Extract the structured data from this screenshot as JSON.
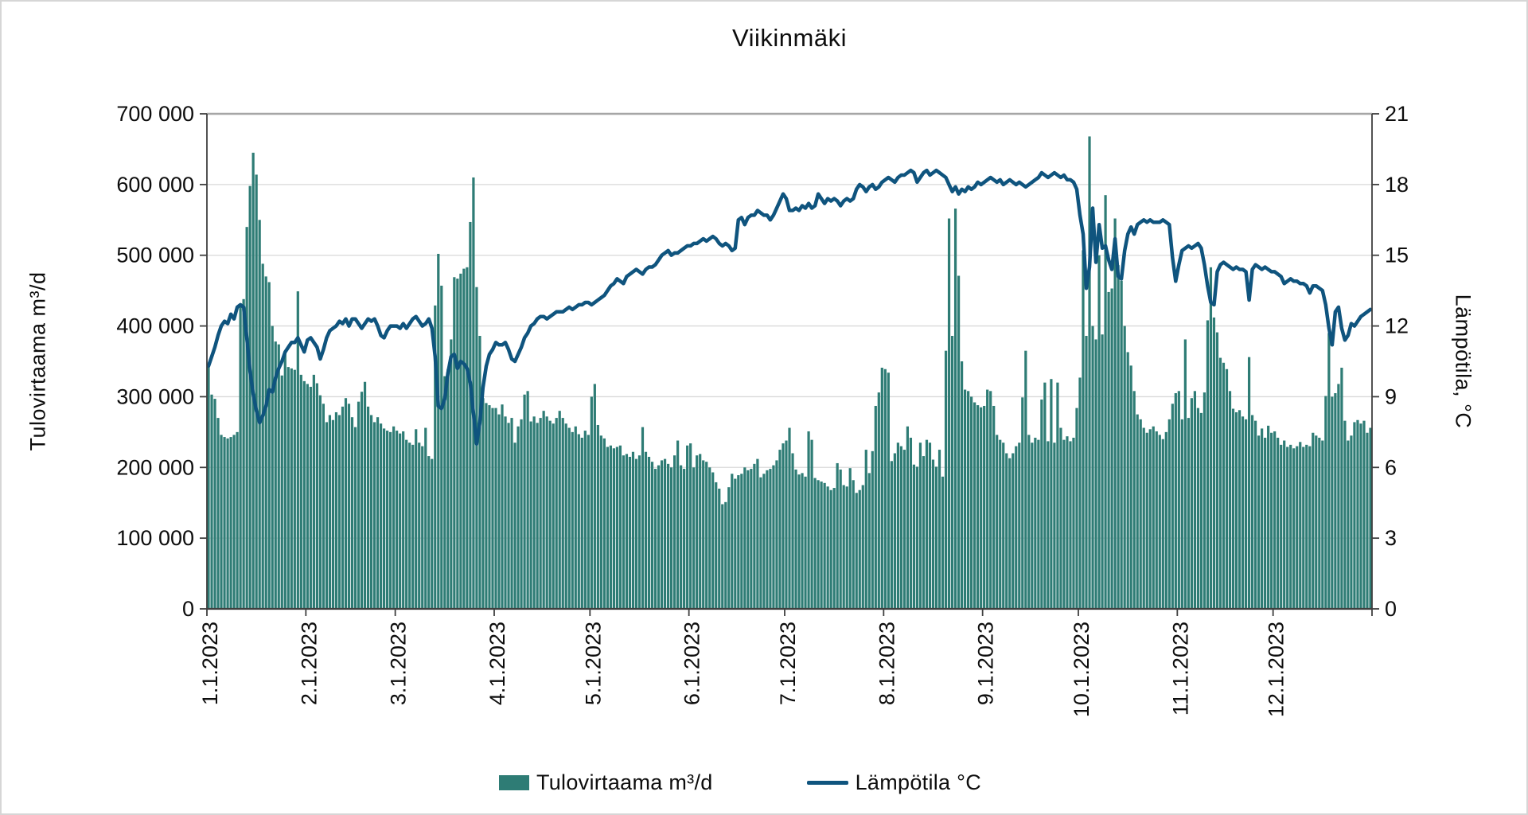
{
  "title": "Viikinmäki",
  "y_axis_left": {
    "title": "Tulovirtaama m³/d",
    "min": 0,
    "max": 700000,
    "step": 100000,
    "tick_labels_top_down": [
      "700 000",
      "600 000",
      "500 000",
      "400 000",
      "300 000",
      "200 000",
      "100 000",
      "0"
    ]
  },
  "y_axis_right": {
    "title": "Lämpötila, °C",
    "min": 0,
    "max": 21,
    "step": 3,
    "tick_labels_top_down": [
      "21",
      "18",
      "15",
      "12",
      "9",
      "6",
      "3",
      "0"
    ]
  },
  "x_axis": {
    "tick_labels": [
      "1.1.2023",
      "2.1.2023",
      "3.1.2023",
      "4.1.2023",
      "5.1.2023",
      "6.1.2023",
      "7.1.2023",
      "8.1.2023",
      "9.1.2023",
      "10.1.2023",
      "11.1.2023",
      "12.1.2023"
    ],
    "month_start_day_offsets": [
      0,
      31,
      59,
      90,
      120,
      151,
      181,
      212,
      243,
      273,
      304,
      334,
      365
    ],
    "days": 365
  },
  "legend": {
    "items": [
      {
        "label": "Tulovirtaama m³/d",
        "marker": "bar",
        "color": "#2E7C75"
      },
      {
        "label": "Lämpötila °C",
        "marker": "line",
        "color": "#0F547E"
      }
    ]
  },
  "colors": {
    "bar": "#2E7C75",
    "line": "#0F547E",
    "gridline": "#D9D9D9",
    "gridline_top": "#A6A6A6",
    "axis": "#3F3F3F",
    "text": "#0D0D0D",
    "background": "#FFFFFF"
  },
  "chart_data": {
    "type": "combo",
    "x_start": "1.1.2023",
    "x_end": "31.12.2023",
    "grid": "horizontal",
    "legend_position": "bottom",
    "series": [
      {
        "name": "Tulovirtaama m³/d",
        "type": "bar",
        "axis": "left",
        "unit": "m3/d",
        "color": "#2E7C75",
        "ylim": [
          0,
          700000
        ],
        "values_by_day_thousands": [
          345,
          303,
          297,
          270,
          246,
          243,
          241,
          243,
          246,
          250,
          432,
          438,
          540,
          598,
          645,
          614,
          550,
          488,
          470,
          462,
          400,
          378,
          374,
          330,
          363,
          342,
          340,
          338,
          449,
          331,
          322,
          318,
          314,
          331,
          319,
          302,
          290,
          264,
          274,
          267,
          278,
          274,
          286,
          298,
          290,
          271,
          257,
          293,
          307,
          321,
          286,
          274,
          264,
          271,
          262,
          255,
          252,
          250,
          258,
          252,
          248,
          251,
          239,
          235,
          232,
          254,
          235,
          230,
          256,
          216,
          212,
          429,
          502,
          457,
          329,
          339,
          381,
          469,
          467,
          474,
          481,
          483,
          547,
          610,
          455,
          386,
          298,
          291,
          288,
          284,
          284,
          275,
          289,
          272,
          263,
          270,
          235,
          258,
          268,
          303,
          308,
          265,
          272,
          263,
          270,
          280,
          272,
          266,
          262,
          270,
          280,
          270,
          262,
          256,
          250,
          258,
          247,
          242,
          252,
          246,
          300,
          318,
          260,
          245,
          241,
          229,
          231,
          227,
          229,
          231,
          217,
          219,
          215,
          222,
          212,
          217,
          257,
          222,
          215,
          208,
          198,
          203,
          210,
          212,
          205,
          200,
          217,
          238,
          203,
          198,
          231,
          234,
          200,
          217,
          219,
          210,
          208,
          200,
          193,
          179,
          170,
          148,
          151,
          172,
          191,
          184,
          189,
          191,
          200,
          196,
          198,
          205,
          212,
          186,
          191,
          196,
          198,
          203,
          210,
          225,
          234,
          238,
          256,
          220,
          197,
          190,
          192,
          187,
          251,
          239,
          185,
          182,
          180,
          178,
          173,
          168,
          171,
          206,
          197,
          175,
          173,
          199,
          182,
          164,
          168,
          175,
          225,
          192,
          223,
          287,
          306,
          341,
          339,
          334,
          209,
          220,
          235,
          230,
          225,
          258,
          242,
          204,
          201,
          235,
          216,
          239,
          235,
          211,
          201,
          225,
          187,
          365,
          552,
          386,
          566,
          471,
          350,
          310,
          308,
          300,
          292,
          288,
          285,
          287,
          310,
          308,
          287,
          246,
          239,
          235,
          220,
          213,
          220,
          230,
          235,
          299,
          365,
          246,
          235,
          242,
          239,
          296,
          320,
          237,
          325,
          235,
          320,
          256,
          239,
          244,
          237,
          242,
          284,
          327,
          507,
          386,
          668,
          400,
          381,
          500,
          388,
          585,
          448,
          453,
          552,
          486,
          464,
          400,
          363,
          344,
          308,
          275,
          268,
          256,
          249,
          254,
          258,
          251,
          246,
          240,
          250,
          268,
          290,
          305,
          308,
          268,
          381,
          270,
          298,
          308,
          284,
          277,
          306,
          408,
          483,
          412,
          391,
          355,
          348,
          339,
          308,
          283,
          278,
          281,
          272,
          268,
          356,
          274,
          266,
          245,
          255,
          242,
          259,
          249,
          251,
          242,
          232,
          238,
          229,
          232,
          227,
          230,
          236,
          229,
          232,
          230,
          249,
          245,
          242,
          238,
          301,
          390,
          300,
          305,
          318,
          341,
          266,
          238,
          245,
          264,
          267,
          262,
          266,
          249,
          256
        ]
      },
      {
        "name": "Lämpötila °C",
        "type": "line",
        "axis": "right",
        "unit": "°C",
        "color": "#0F547E",
        "ylim": [
          0,
          21
        ],
        "values_by_day": [
          10.3,
          10.7,
          11.1,
          11.6,
          12.0,
          12.2,
          12.1,
          12.5,
          12.3,
          12.8,
          12.9,
          12.8,
          11.5,
          10.1,
          9.1,
          8.4,
          7.9,
          8.2,
          8.6,
          9.3,
          9.2,
          9.8,
          10.2,
          10.5,
          10.9,
          11.1,
          11.3,
          11.3,
          11.5,
          11.2,
          10.9,
          11.4,
          11.5,
          11.3,
          11.1,
          10.6,
          11.0,
          11.5,
          11.8,
          11.9,
          12.0,
          12.2,
          12.1,
          12.3,
          12.0,
          12.3,
          12.3,
          12.1,
          11.9,
          12.1,
          12.3,
          12.2,
          12.3,
          12.0,
          11.6,
          11.5,
          11.8,
          12.0,
          12.0,
          12.0,
          11.9,
          12.1,
          11.9,
          12.1,
          12.3,
          12.4,
          12.2,
          12.0,
          12.1,
          12.3,
          11.9,
          10.7,
          8.6,
          8.5,
          8.9,
          10.0,
          10.7,
          10.8,
          10.2,
          10.5,
          10.4,
          10.2,
          9.6,
          8.3,
          7.0,
          7.9,
          9.4,
          10.3,
          10.8,
          11.0,
          11.3,
          11.2,
          11.2,
          11.3,
          11.0,
          10.6,
          10.5,
          10.8,
          11.1,
          11.5,
          11.7,
          12.0,
          12.1,
          12.3,
          12.4,
          12.4,
          12.3,
          12.4,
          12.5,
          12.6,
          12.6,
          12.6,
          12.7,
          12.8,
          12.7,
          12.8,
          12.9,
          12.9,
          13.0,
          13.0,
          12.9,
          13.0,
          13.1,
          13.2,
          13.3,
          13.5,
          13.7,
          13.8,
          14.0,
          13.9,
          13.8,
          14.1,
          14.2,
          14.3,
          14.4,
          14.3,
          14.2,
          14.4,
          14.5,
          14.5,
          14.6,
          14.8,
          15.0,
          15.1,
          15.2,
          15.0,
          15.1,
          15.1,
          15.2,
          15.3,
          15.4,
          15.4,
          15.5,
          15.5,
          15.6,
          15.7,
          15.6,
          15.7,
          15.8,
          15.7,
          15.5,
          15.4,
          15.5,
          15.4,
          15.2,
          15.3,
          16.5,
          16.6,
          16.3,
          16.6,
          16.7,
          16.7,
          16.9,
          16.8,
          16.7,
          16.7,
          16.5,
          16.7,
          17.0,
          17.3,
          17.6,
          17.4,
          16.9,
          16.9,
          17.0,
          16.9,
          17.1,
          17.0,
          17.2,
          17.0,
          17.1,
          17.6,
          17.4,
          17.2,
          17.4,
          17.3,
          17.4,
          17.3,
          17.1,
          17.3,
          17.4,
          17.3,
          17.4,
          17.8,
          18.0,
          17.9,
          17.7,
          17.9,
          18.0,
          17.8,
          17.9,
          18.1,
          18.2,
          18.3,
          18.2,
          18.1,
          18.3,
          18.4,
          18.4,
          18.5,
          18.6,
          18.5,
          18.1,
          18.3,
          18.5,
          18.6,
          18.4,
          18.5,
          18.6,
          18.5,
          18.4,
          18.3,
          18.0,
          17.7,
          17.9,
          17.6,
          17.8,
          17.7,
          17.9,
          17.8,
          17.9,
          18.1,
          18.0,
          18.1,
          18.2,
          18.3,
          18.2,
          18.1,
          18.2,
          18.0,
          18.1,
          18.2,
          18.1,
          18.0,
          18.1,
          18.0,
          17.9,
          18.0,
          18.1,
          18.2,
          18.3,
          18.5,
          18.4,
          18.3,
          18.4,
          18.5,
          18.4,
          18.3,
          18.4,
          18.2,
          18.2,
          18.1,
          17.8,
          16.7,
          15.9,
          13.6,
          14.5,
          17.0,
          14.7,
          16.3,
          15.3,
          15.4,
          14.8,
          14.4,
          15.7,
          14.1,
          14.0,
          15.2,
          15.9,
          16.2,
          15.9,
          16.3,
          16.4,
          16.5,
          16.4,
          16.5,
          16.4,
          16.4,
          16.4,
          16.5,
          16.4,
          16.3,
          14.9,
          13.9,
          14.6,
          15.2,
          15.3,
          15.4,
          15.3,
          15.4,
          15.5,
          15.3,
          14.6,
          13.7,
          13.0,
          12.9,
          14.3,
          14.6,
          14.7,
          14.6,
          14.5,
          14.4,
          14.5,
          14.4,
          14.4,
          14.3,
          13.1,
          14.4,
          14.6,
          14.5,
          14.4,
          14.5,
          14.4,
          14.3,
          14.3,
          14.2,
          14.1,
          13.8,
          13.9,
          14.0,
          13.9,
          13.9,
          13.8,
          13.8,
          13.7,
          13.4,
          13.7,
          13.7,
          13.6,
          13.5,
          12.9,
          11.9,
          11.2,
          12.6,
          12.8,
          11.9,
          11.4,
          11.6,
          12.1,
          12.0,
          12.2,
          12.4,
          12.5,
          12.6,
          12.7
        ]
      }
    ]
  }
}
